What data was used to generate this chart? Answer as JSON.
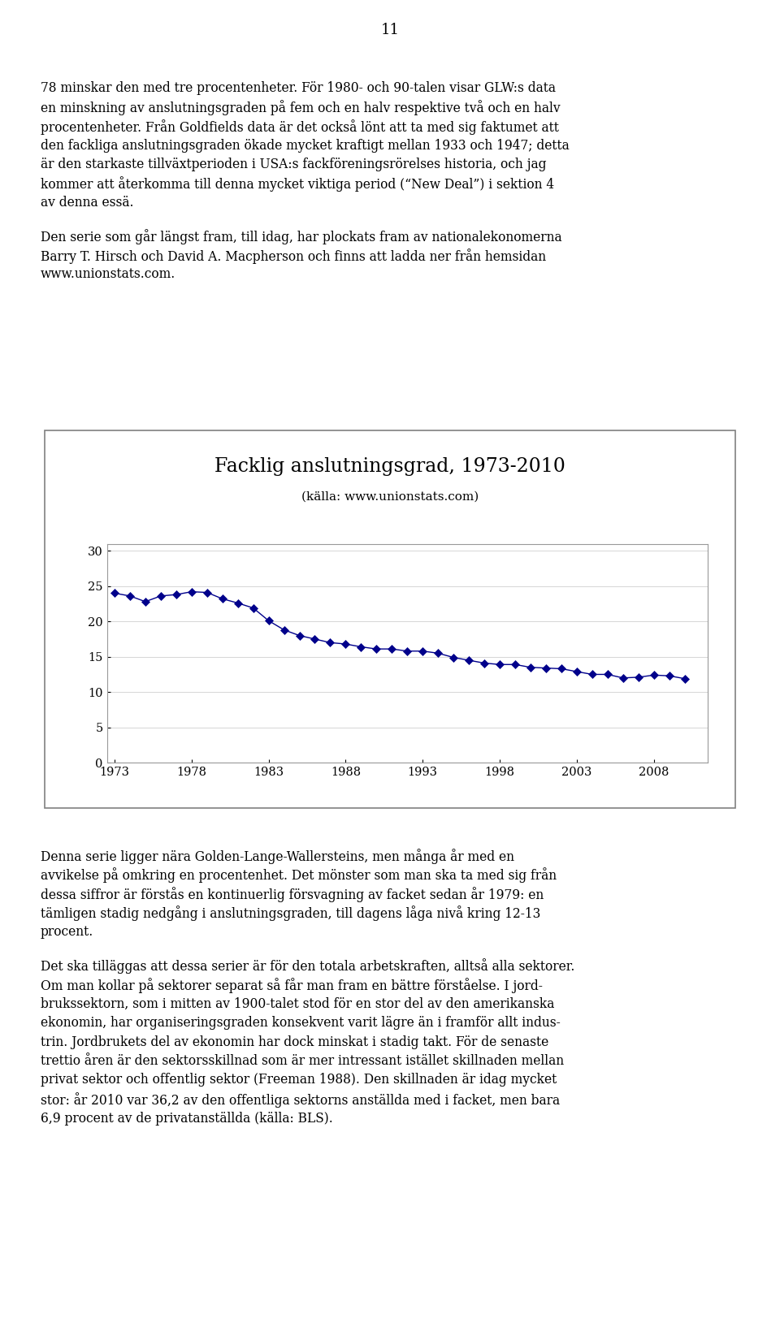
{
  "page_number": "11",
  "text_para1_lines": [
    "78 minskar den med tre procentenheter. För 1980- och 90-talen visar GLW:s data",
    "en minskning av anslutningsgraden på fem och en halv respektive två och en halv",
    "procentenheter. Från Goldfields data är det också lönt att ta med sig faktumet att",
    "den fackliga anslutningsgraden ökade mycket kraftigt mellan 1933 och 1947; detta",
    "är den starkaste tillväxtperioden i USA:s fackföreningsrörelses historia, och jag",
    "kommer att återkomma till denna mycket viktiga period (“New Deal”) i sektion 4",
    "av denna essä."
  ],
  "text_para1_italic_word": "New Deal",
  "text_para2_lines": [
    "Den serie som går längst fram, till idag, har plockats fram av nationalekonomerna",
    "Barry T. Hirsch och David A. Macpherson och finns att ladda ner från hemsidan",
    "www.unionstats.com."
  ],
  "chart_title": "Facklig anslutningsgrad, 1973-2010",
  "chart_subtitle": "(källa: www.unionstats.com)",
  "years": [
    1973,
    1974,
    1975,
    1976,
    1977,
    1978,
    1979,
    1980,
    1981,
    1982,
    1983,
    1984,
    1985,
    1986,
    1987,
    1988,
    1989,
    1990,
    1991,
    1992,
    1993,
    1994,
    1995,
    1996,
    1997,
    1998,
    1999,
    2000,
    2001,
    2002,
    2003,
    2004,
    2005,
    2006,
    2007,
    2008,
    2009,
    2010
  ],
  "values": [
    24.0,
    23.6,
    22.8,
    23.6,
    23.8,
    24.2,
    24.1,
    23.2,
    22.6,
    21.9,
    20.1,
    18.8,
    18.0,
    17.5,
    17.0,
    16.8,
    16.4,
    16.1,
    16.1,
    15.8,
    15.8,
    15.5,
    14.9,
    14.5,
    14.1,
    13.9,
    13.9,
    13.5,
    13.4,
    13.3,
    12.9,
    12.5,
    12.5,
    12.0,
    12.1,
    12.4,
    12.3,
    11.9
  ],
  "line_color": "#00008B",
  "marker_color": "#00008B",
  "text_para3_lines": [
    "Denna serie ligger nära Golden-Lange-Wallersteins, men många år med en",
    "avvikelse på omkring en procentenhet. Det mönster som man ska ta med sig från",
    "dessa siffror är förstås en kontinuerlig försvagning av facket sedan år 1979: en",
    "tämligen stadig nedgång i anslutningsgraden, till dagens låga nivå kring 12-13",
    "procent."
  ],
  "text_para4_lines": [
    "Det ska tilläggas att dessa serier är för den totala arbetskraften, alltså alla sektorer.",
    "Om man kollar på sektorer separat så får man fram en bättre förståelse. I jord-",
    "brukssektorn, som i mitten av 1900-talet stod för en stor del av den amerikanska",
    "ekonomin, har organiseringsgraden konsekvent varit lägre än i framför allt indus-",
    "trin. Jordbrukets del av ekonomin har dock minskat i stadig takt. För de senaste",
    "trettio åren är den sektorsskillnad som är mer intressant istället skillnaden mellan",
    "privat sektor och offentlig sektor (Freeman 1988). Den skillnaden är idag mycket",
    "stor: år 2010 var 36,2 av den offentliga sektorns anställda med i facket, men bara",
    "6,9 procent av de privatanställda (källa: BLS)."
  ],
  "background_color": "#ffffff",
  "text_color": "#000000",
  "chart_bg": "#ffffff",
  "chart_border_color": "#808080",
  "grid_color": "#d0d0d0",
  "yticks": [
    0,
    5,
    10,
    15,
    20,
    25,
    30
  ],
  "xticks": [
    1973,
    1978,
    1983,
    1988,
    1993,
    1998,
    2003,
    2008
  ],
  "ylim": [
    0,
    31
  ],
  "xlim": [
    1972.5,
    2011.5
  ]
}
